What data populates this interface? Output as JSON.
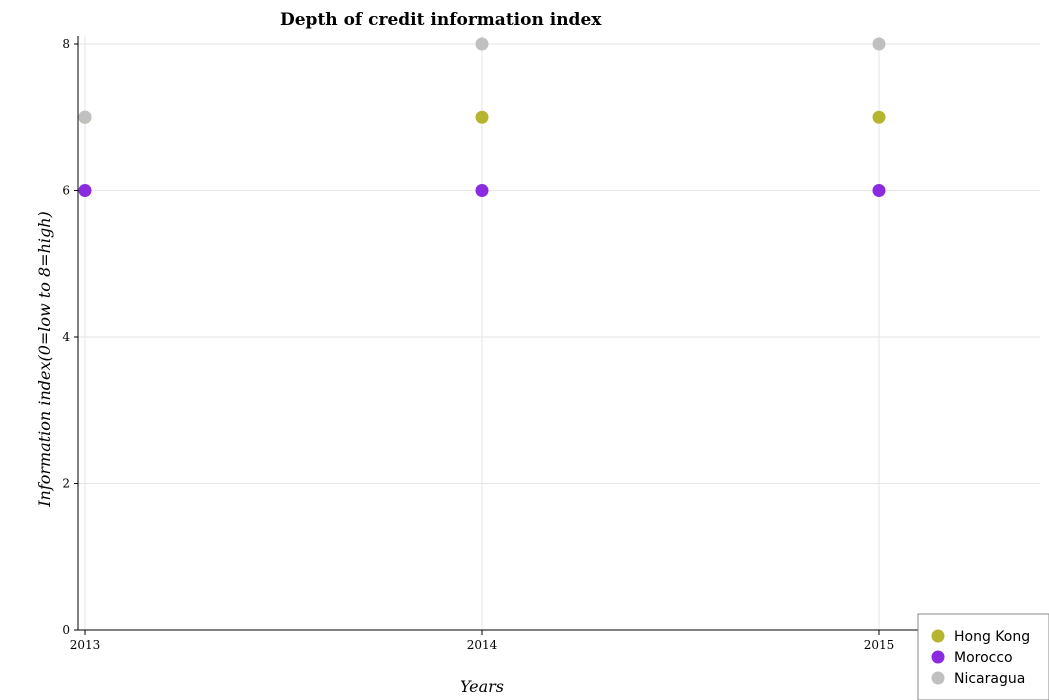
{
  "chart_data": {
    "type": "scatter",
    "title": "Depth of credit information index",
    "xlabel": "Years",
    "ylabel": "Information index(0=low to 8=high)",
    "categories": [
      "2013",
      "2014",
      "2015"
    ],
    "ylim": [
      0,
      8
    ],
    "yticks": [
      0,
      2,
      4,
      6,
      8
    ],
    "grid": true,
    "legend_position": "bottom-right",
    "series": [
      {
        "name": "Hong Kong",
        "color": "#b5b530",
        "values": [
          7,
          7,
          7
        ]
      },
      {
        "name": "Morocco",
        "color": "#8a2be2",
        "values": [
          6,
          6,
          6
        ]
      },
      {
        "name": "Nicaragua",
        "color": "#c0c0c0",
        "values": [
          7,
          8,
          8
        ]
      }
    ]
  }
}
